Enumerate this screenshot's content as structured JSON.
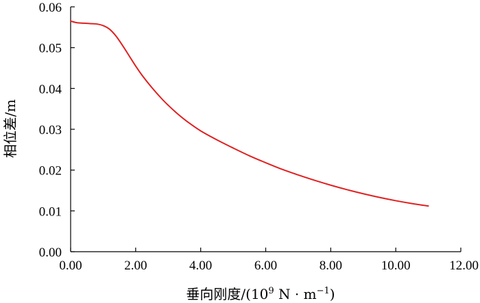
{
  "chart_data": {
    "type": "line",
    "title": "",
    "xlabel": "垂向刚度/(10",
    "xlabel_sup": "9",
    "xlabel_mid": " N · m",
    "xlabel_sup2": "−1",
    "xlabel_end": ")",
    "ylabel": "相位差/m",
    "xlim": [
      0,
      12
    ],
    "ylim": [
      0,
      0.06
    ],
    "x_ticks": [
      "0.00",
      "2.00",
      "4.00",
      "6.00",
      "8.00",
      "10.00",
      "12.00"
    ],
    "y_ticks": [
      "0.00",
      "0.01",
      "0.02",
      "0.03",
      "0.04",
      "0.05",
      "0.06"
    ],
    "grid": false,
    "series": [
      {
        "color": "#e02020",
        "x": [
          0.0,
          0.2,
          0.4,
          0.6,
          0.8,
          1.0,
          1.2,
          1.4,
          1.6,
          1.8,
          2.0,
          2.2,
          2.5,
          2.8,
          3.0,
          3.3,
          3.6,
          4.0,
          4.5,
          5.0,
          5.5,
          6.0,
          6.5,
          7.0,
          7.5,
          8.0,
          8.5,
          9.0,
          9.5,
          10.0,
          10.5,
          11.0
        ],
        "y": [
          0.0565,
          0.0561,
          0.056,
          0.0559,
          0.0558,
          0.0554,
          0.0545,
          0.0528,
          0.0505,
          0.048,
          0.0455,
          0.0432,
          0.0402,
          0.0375,
          0.0359,
          0.0337,
          0.0318,
          0.0296,
          0.0274,
          0.0254,
          0.0235,
          0.0218,
          0.0202,
          0.0188,
          0.0175,
          0.0163,
          0.0152,
          0.0142,
          0.0133,
          0.0125,
          0.0118,
          0.0112
        ]
      }
    ]
  }
}
